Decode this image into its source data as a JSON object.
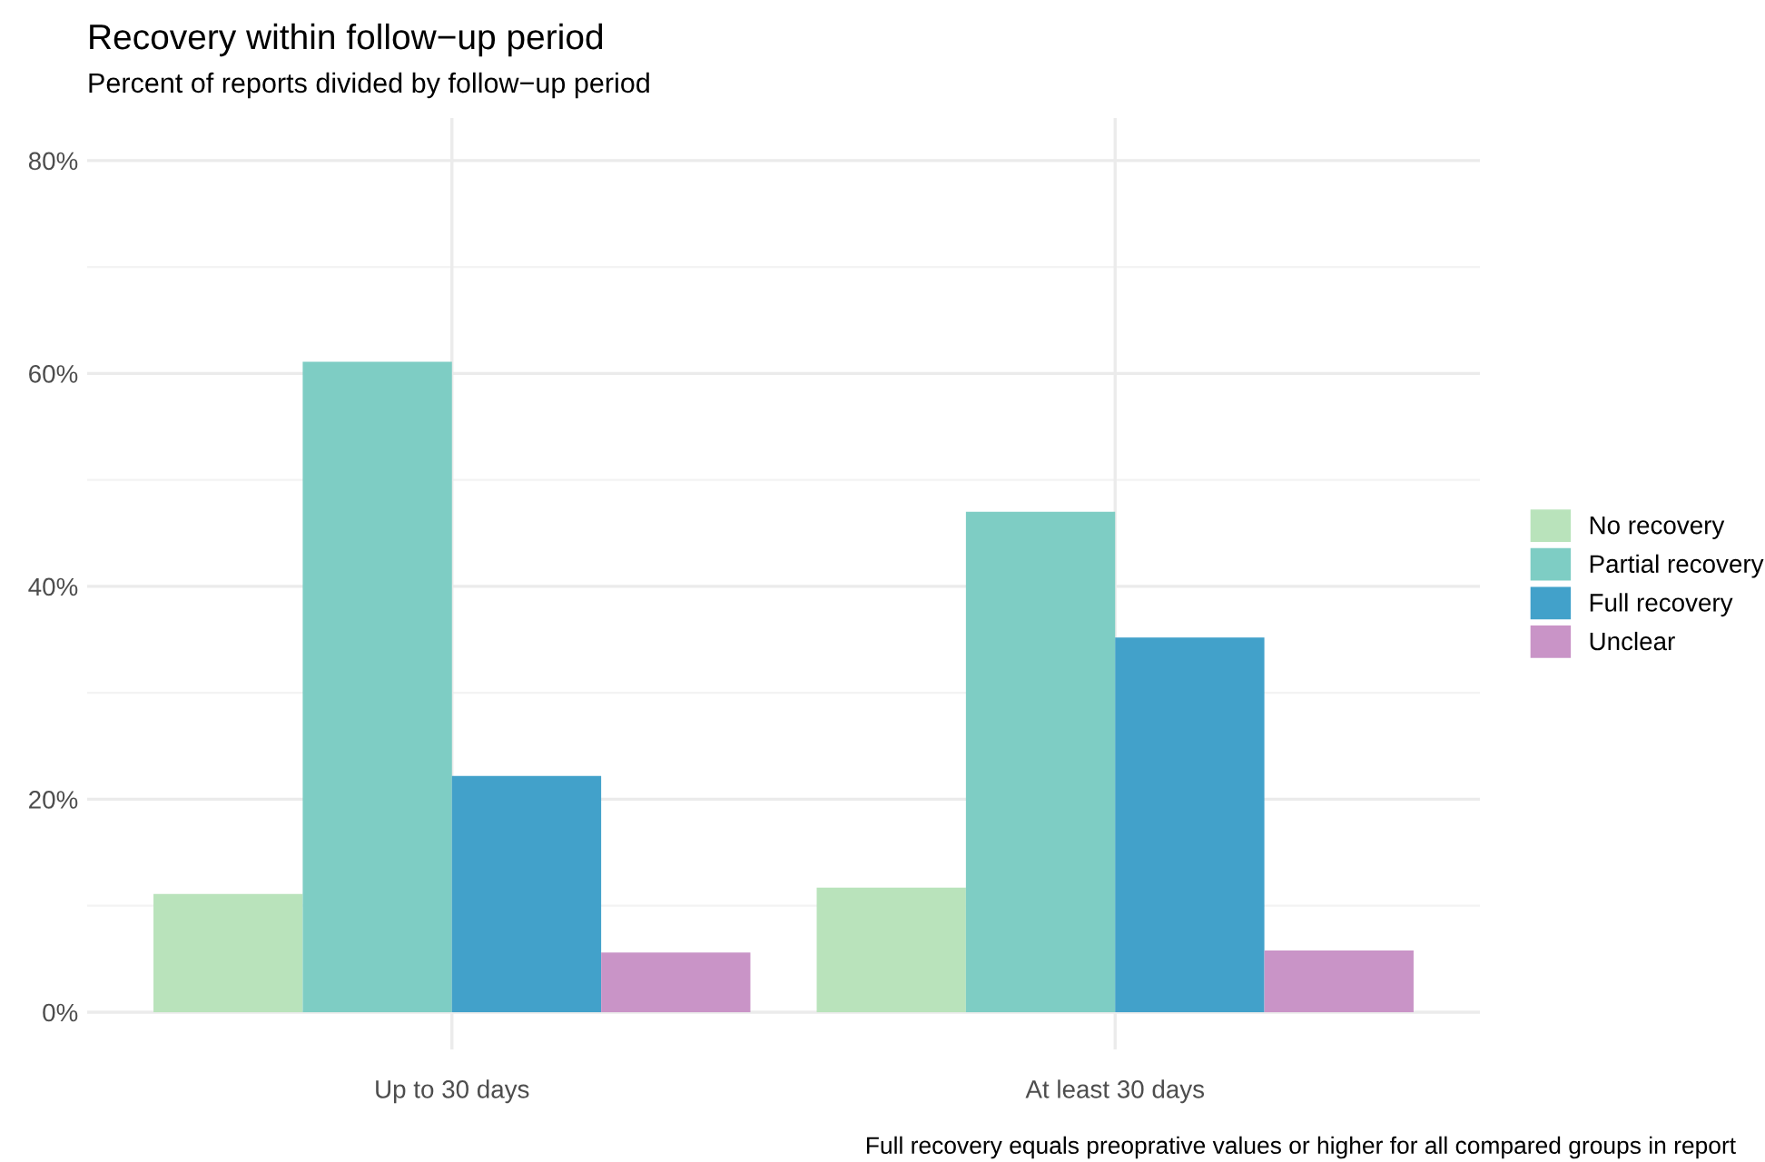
{
  "chart_data": {
    "type": "bar",
    "title": "Recovery within follow−up period",
    "subtitle": "Percent of reports divided by follow−up period",
    "categories": [
      "Up to 30 days",
      "At least 30 days"
    ],
    "series": [
      {
        "name": "No recovery",
        "color": "#b9e3bb",
        "values": [
          11.1,
          11.7
        ]
      },
      {
        "name": "Partial recovery",
        "color": "#7ecdc4",
        "values": [
          61.1,
          47.0
        ]
      },
      {
        "name": "Full recovery",
        "color": "#42a1ca",
        "values": [
          22.2,
          35.2
        ]
      },
      {
        "name": "Unclear",
        "color": "#c994c7",
        "values": [
          5.6,
          5.8
        ]
      }
    ],
    "ylim": [
      -3.5,
      84
    ],
    "yticks": [
      {
        "value": 0,
        "label": "0%"
      },
      {
        "value": 20,
        "label": "20%"
      },
      {
        "value": 40,
        "label": "40%"
      },
      {
        "value": 60,
        "label": "60%"
      },
      {
        "value": 80,
        "label": "80%"
      }
    ],
    "grid": true,
    "legend": "right",
    "annotations": [
      "Full recovery equals preoprative values or higher for all compared groups in report"
    ]
  }
}
